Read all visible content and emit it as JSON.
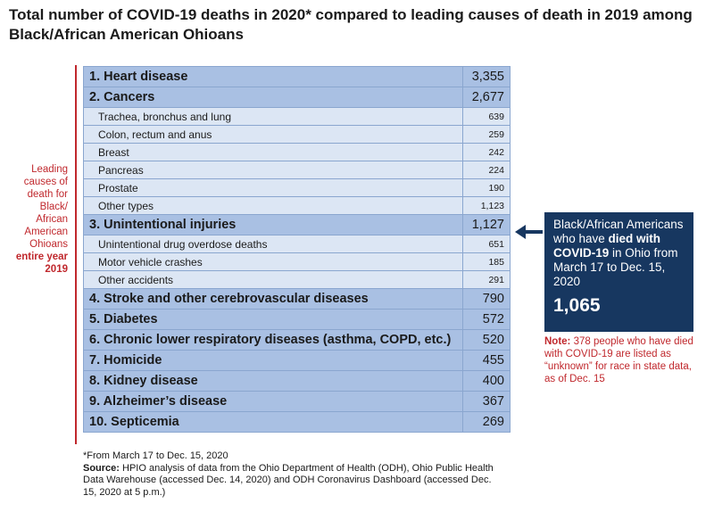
{
  "title": "Total number of COVID-19 deaths in 2020* compared to leading causes of death in 2019 among Black/African American Ohioans",
  "sidebar": {
    "line1": "Leading causes of death for Black/ African American Ohioans",
    "line2": "entire year 2019"
  },
  "chart_data": {
    "type": "table",
    "rows": [
      {
        "label": "1. Heart disease",
        "value": "3,355",
        "level": "main"
      },
      {
        "label": "2. Cancers",
        "value": "2,677",
        "level": "main"
      },
      {
        "label": "Trachea, bronchus and lung",
        "value": "639",
        "level": "sub"
      },
      {
        "label": "Colon, rectum and anus",
        "value": "259",
        "level": "sub"
      },
      {
        "label": "Breast",
        "value": "242",
        "level": "sub"
      },
      {
        "label": "Pancreas",
        "value": "224",
        "level": "sub"
      },
      {
        "label": "Prostate",
        "value": "190",
        "level": "sub"
      },
      {
        "label": "Other types",
        "value": "1,123",
        "level": "sub"
      },
      {
        "label": "3. Unintentional injuries",
        "value": "1,127",
        "level": "main"
      },
      {
        "label": "Unintentional drug overdose deaths",
        "value": "651",
        "level": "sub"
      },
      {
        "label": "Motor vehicle crashes",
        "value": "185",
        "level": "sub"
      },
      {
        "label": "Other accidents",
        "value": "291",
        "level": "sub"
      },
      {
        "label": "4. Stroke and other cerebrovascular diseases",
        "value": "790",
        "level": "main"
      },
      {
        "label": "5. Diabetes",
        "value": "572",
        "level": "main"
      },
      {
        "label": "6. Chronic lower respiratory diseases (asthma, COPD, etc.)",
        "value": "520",
        "level": "main"
      },
      {
        "label": "7. Homicide",
        "value": "455",
        "level": "main"
      },
      {
        "label": "8. Kidney disease",
        "value": "400",
        "level": "main"
      },
      {
        "label": "9. Alzheimer’s disease",
        "value": "367",
        "level": "main"
      },
      {
        "label": "10. Septicemia",
        "value": "269",
        "level": "main"
      }
    ]
  },
  "callout": {
    "text1": "Black/African Americans who have ",
    "text_bold": "died with COVID-19",
    "text2": " in Ohio from March 17 to Dec. 15, 2020",
    "value": "1,065"
  },
  "note": {
    "label": "Note:",
    "text": " 378 people who have died with COVID-19 are listed as “unknown” for race in state data, as of Dec. 15"
  },
  "footnote": {
    "asterisk": "*From March 17 to Dec. 15, 2020",
    "source_label": "Source:",
    "source_text": " HPIO analysis of data from the Ohio Department of Health (ODH), Ohio Public Health Data Warehouse (accessed Dec. 14, 2020) and ODH Coronavirus Dashboard (accessed Dec. 15, 2020 at 5 p.m.)"
  },
  "colors": {
    "main_row": "#a9c0e3",
    "sub_row": "#dce6f4",
    "accent_red": "#c0282d",
    "callout_navy": "#173760"
  }
}
